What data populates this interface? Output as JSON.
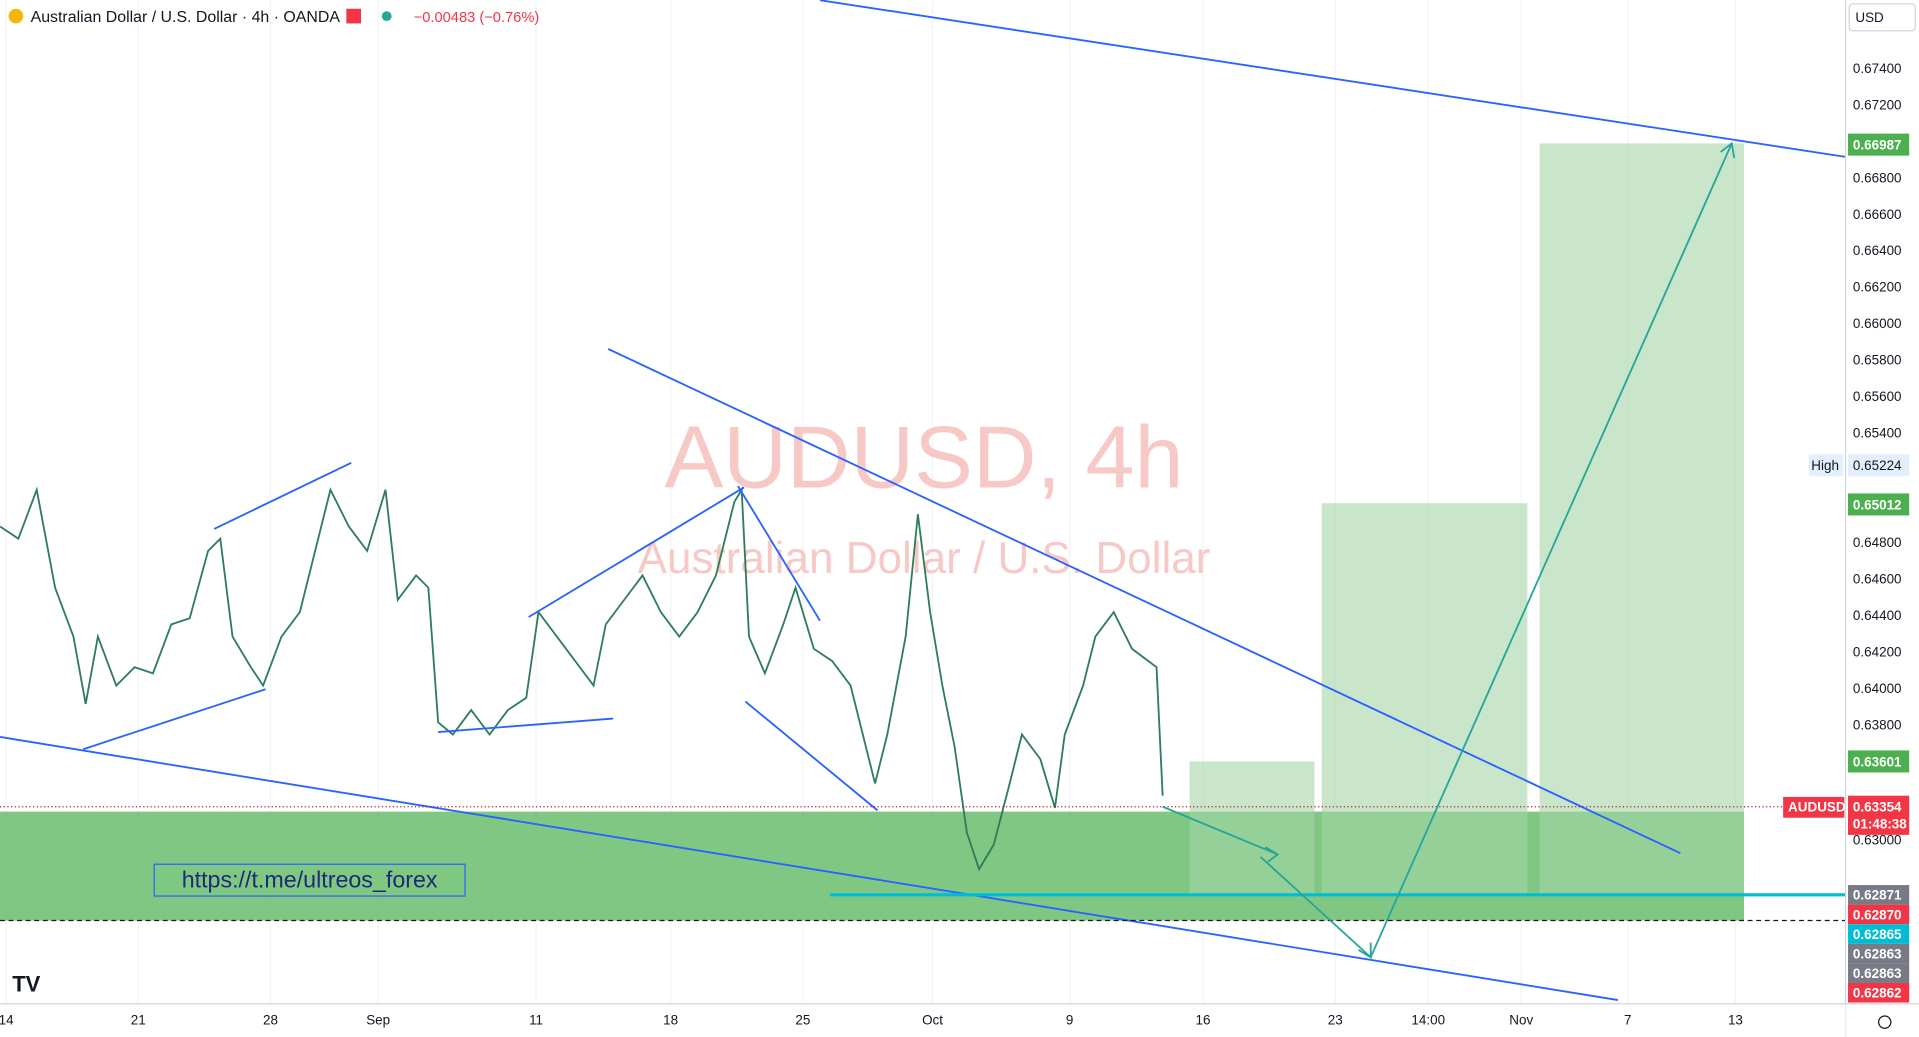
{
  "header": {
    "symbol": "Australian Dollar / U.S. Dollar · 4h · OANDA",
    "change": "−0.00483 (−0.76%)",
    "currency": "USD"
  },
  "watermark": {
    "title": "AUDUSD, 4h",
    "subtitle": "Australian Dollar / U.S. Dollar"
  },
  "link": "https://t.me/ultreos_forex",
  "price_axis": {
    "ticks": [
      "0.67400",
      "0.67200",
      "0.66800",
      "0.66600",
      "0.66400",
      "0.66200",
      "0.66000",
      "0.65800",
      "0.65600",
      "0.65400",
      "0.64800",
      "0.64600",
      "0.64400",
      "0.64200",
      "0.64000",
      "0.63800",
      "0.63000"
    ]
  },
  "badges": {
    "high_label": "High",
    "high": "0.65224",
    "target1": "0.66987",
    "target2": "0.65012",
    "target3": "0.63601",
    "symbol": "AUDUSD",
    "last": "0.63354",
    "countdown": "01:48:38",
    "stack": [
      "0.62871",
      "0.62870",
      "0.62865",
      "0.62863",
      "0.62863",
      "0.62862"
    ]
  },
  "time_axis": [
    "14",
    "21",
    "28",
    "Sep",
    "11",
    "18",
    "25",
    "Oct",
    "9",
    "16",
    "23",
    "14:00",
    "Nov",
    "7",
    "13"
  ]
}
